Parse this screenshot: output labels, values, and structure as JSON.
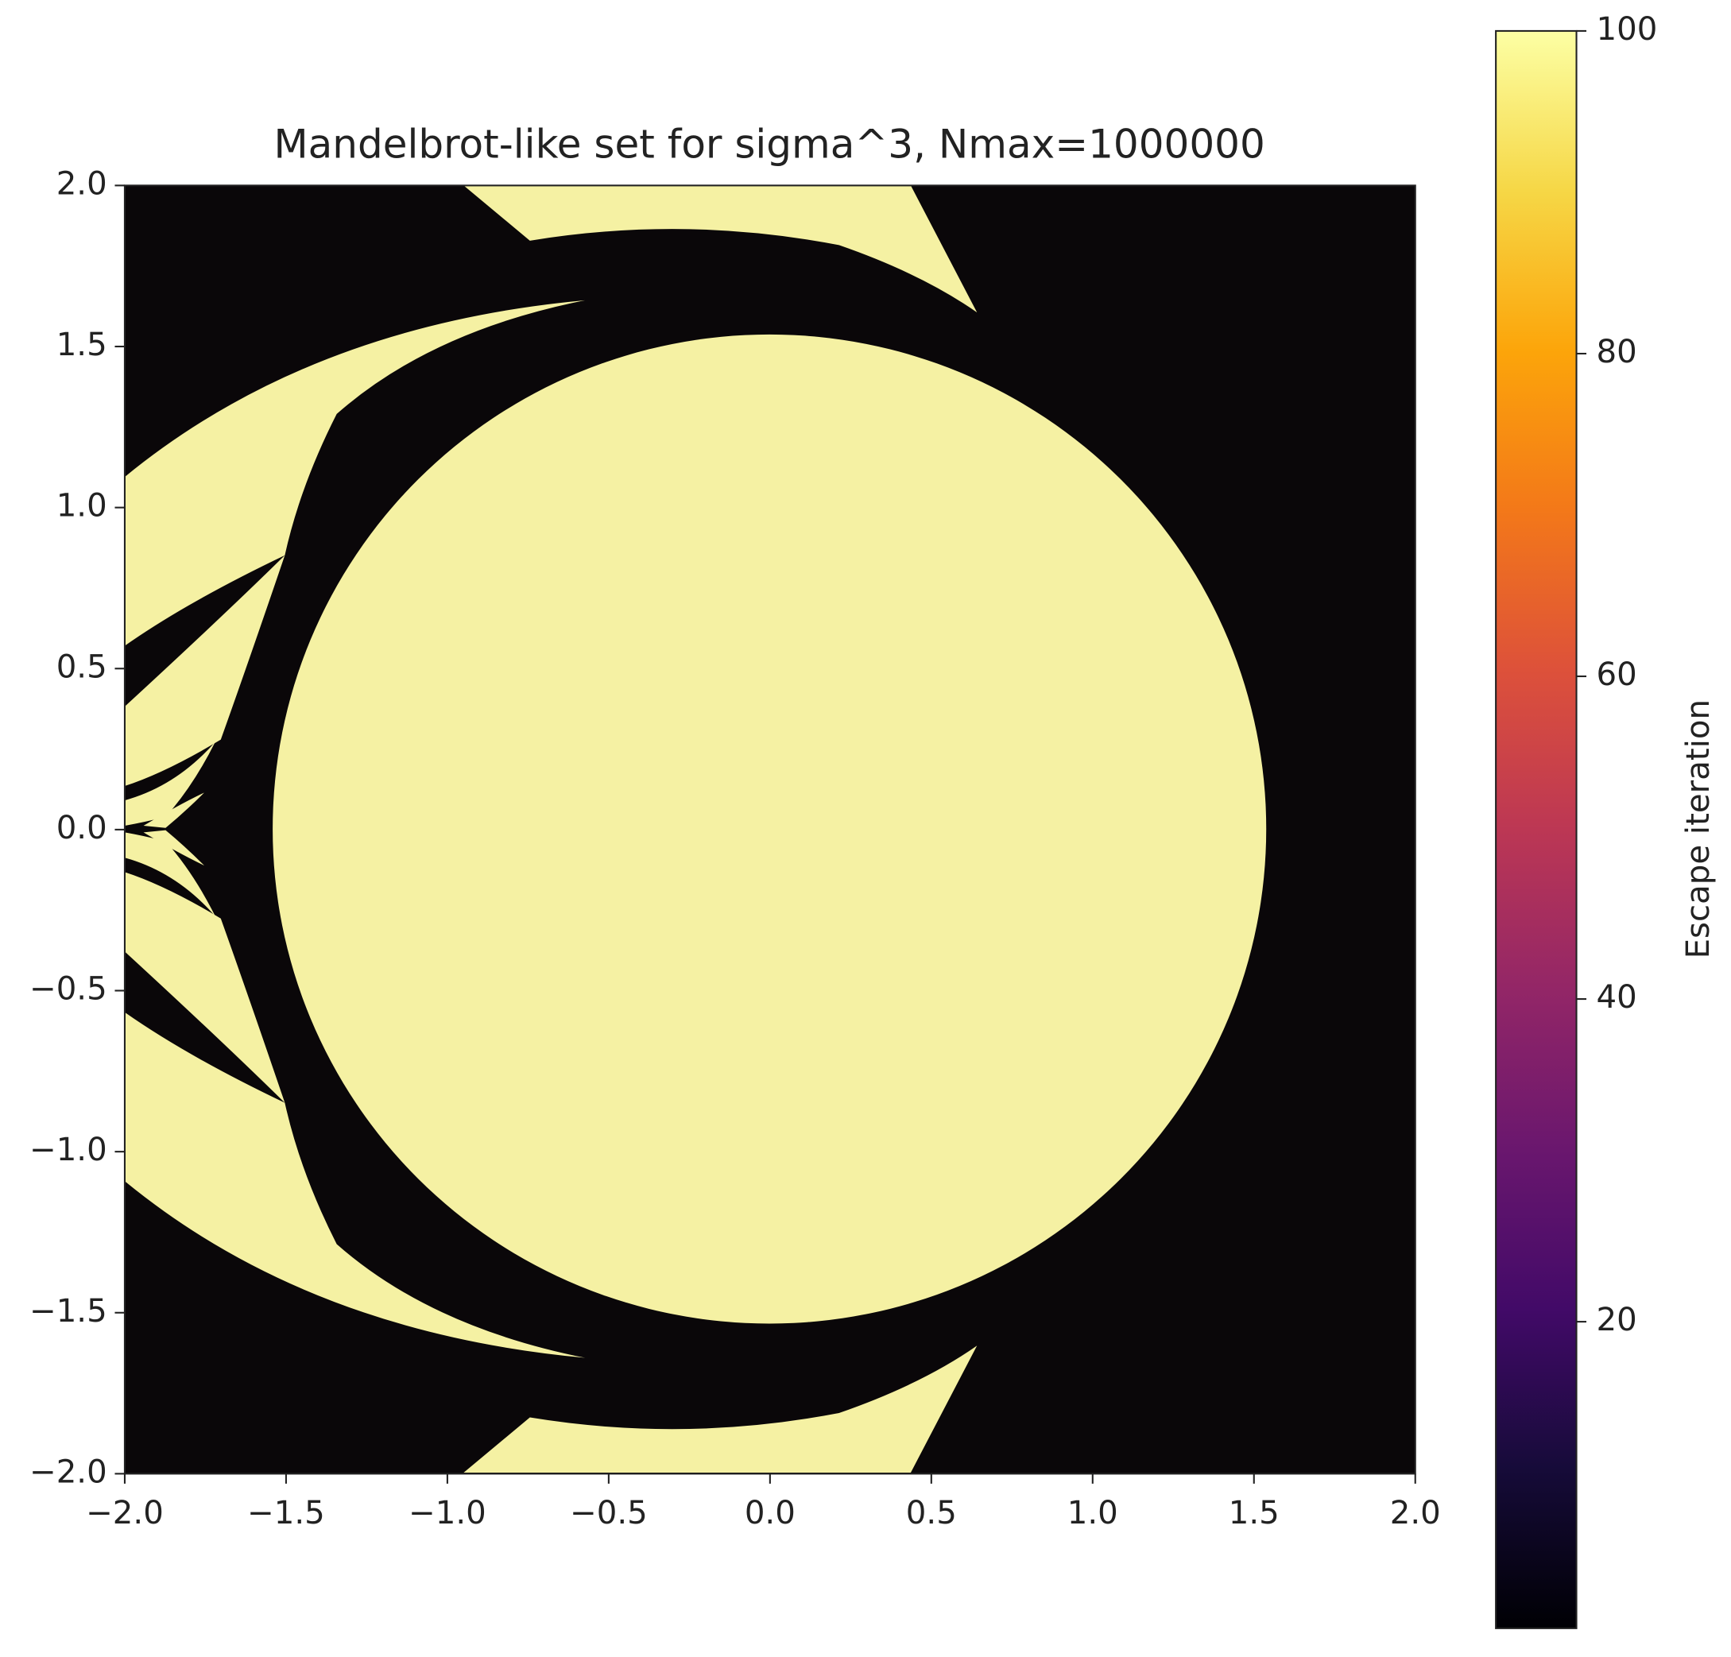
{
  "chart_data": {
    "type": "heatmap",
    "title": "Mandelbrot-like set for sigma^3, Nmax=1000000",
    "xlim": [
      -2,
      2
    ],
    "ylim": [
      -2,
      2
    ],
    "xticks": [
      {
        "value": -2,
        "label": "−2.0"
      },
      {
        "value": -1.5,
        "label": "−1.5"
      },
      {
        "value": -1,
        "label": "−1.0"
      },
      {
        "value": -0.5,
        "label": "−0.5"
      },
      {
        "value": 0,
        "label": "0.0"
      },
      {
        "value": 0.5,
        "label": "0.5"
      },
      {
        "value": 1,
        "label": "1.0"
      },
      {
        "value": 1.5,
        "label": "1.5"
      },
      {
        "value": 2,
        "label": "2.0"
      }
    ],
    "yticks": [
      {
        "value": -2,
        "label": "−2.0"
      },
      {
        "value": -1.5,
        "label": "−1.5"
      },
      {
        "value": -1,
        "label": "−1.0"
      },
      {
        "value": -0.5,
        "label": "−0.5"
      },
      {
        "value": 0,
        "label": "0.0"
      },
      {
        "value": 0.5,
        "label": "0.5"
      },
      {
        "value": 1,
        "label": "1.0"
      },
      {
        "value": 1.5,
        "label": "1.5"
      },
      {
        "value": 2,
        "label": "2.0"
      }
    ],
    "colorbar": {
      "label": "Escape iteration",
      "lim": [
        1,
        100
      ],
      "ticks": [
        20,
        40,
        60,
        80,
        100
      ],
      "colormap": "inferno"
    }
  }
}
